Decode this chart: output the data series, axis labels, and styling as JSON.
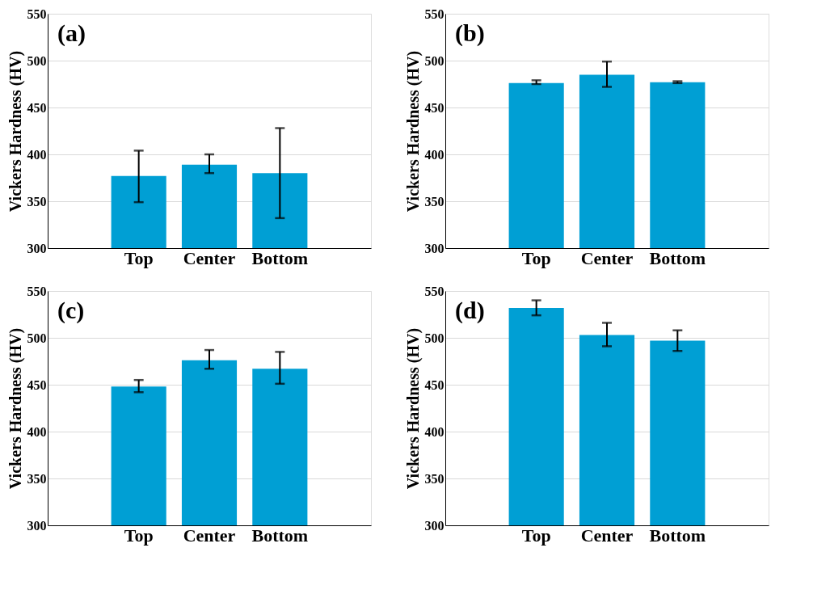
{
  "chart_data": [
    {
      "type": "bar",
      "annotations": [
        "(a)"
      ],
      "ylabel": "Vickers Hardness (HV)",
      "categories": [
        "Top",
        "Center",
        "Bottom"
      ],
      "values": [
        377,
        389,
        380
      ],
      "errors": [
        [
          349,
          404
        ],
        [
          380,
          400
        ],
        [
          332,
          428
        ]
      ],
      "color": "#009fd4",
      "ylim": [
        300,
        550
      ],
      "yticks": [
        300,
        350,
        400,
        450,
        500,
        550
      ],
      "grid": "y"
    },
    {
      "type": "bar",
      "annotations": [
        "(b)"
      ],
      "ylabel": "Vickers Hardness (HV)",
      "categories": [
        "Top",
        "Center",
        "Bottom"
      ],
      "values": [
        476,
        485,
        477
      ],
      "errors": [
        [
          475,
          479
        ],
        [
          472,
          499
        ],
        [
          476,
          478
        ]
      ],
      "color": "#009fd4",
      "ylim": [
        300,
        550
      ],
      "yticks": [
        300,
        350,
        400,
        450,
        500,
        550
      ],
      "grid": "y"
    },
    {
      "type": "bar",
      "annotations": [
        "(c)"
      ],
      "ylabel": "Vickers Hardness (HV)",
      "categories": [
        "Top",
        "Center",
        "Bottom"
      ],
      "values": [
        448,
        476,
        467
      ],
      "errors": [
        [
          442,
          455
        ],
        [
          467,
          487
        ],
        [
          451,
          485
        ]
      ],
      "color": "#009fd4",
      "ylim": [
        300,
        550
      ],
      "yticks": [
        300,
        350,
        400,
        450,
        500,
        550
      ],
      "grid": "y"
    },
    {
      "type": "bar",
      "annotations": [
        "(d)"
      ],
      "ylabel": "Vickers Hardness (HV)",
      "categories": [
        "Top",
        "Center",
        "Bottom"
      ],
      "values": [
        532,
        503,
        497
      ],
      "errors": [
        [
          524,
          540
        ],
        [
          491,
          516
        ],
        [
          486,
          508
        ]
      ],
      "color": "#009fd4",
      "ylim": [
        300,
        550
      ],
      "yticks": [
        300,
        350,
        400,
        450,
        500,
        550
      ],
      "grid": "y"
    }
  ]
}
